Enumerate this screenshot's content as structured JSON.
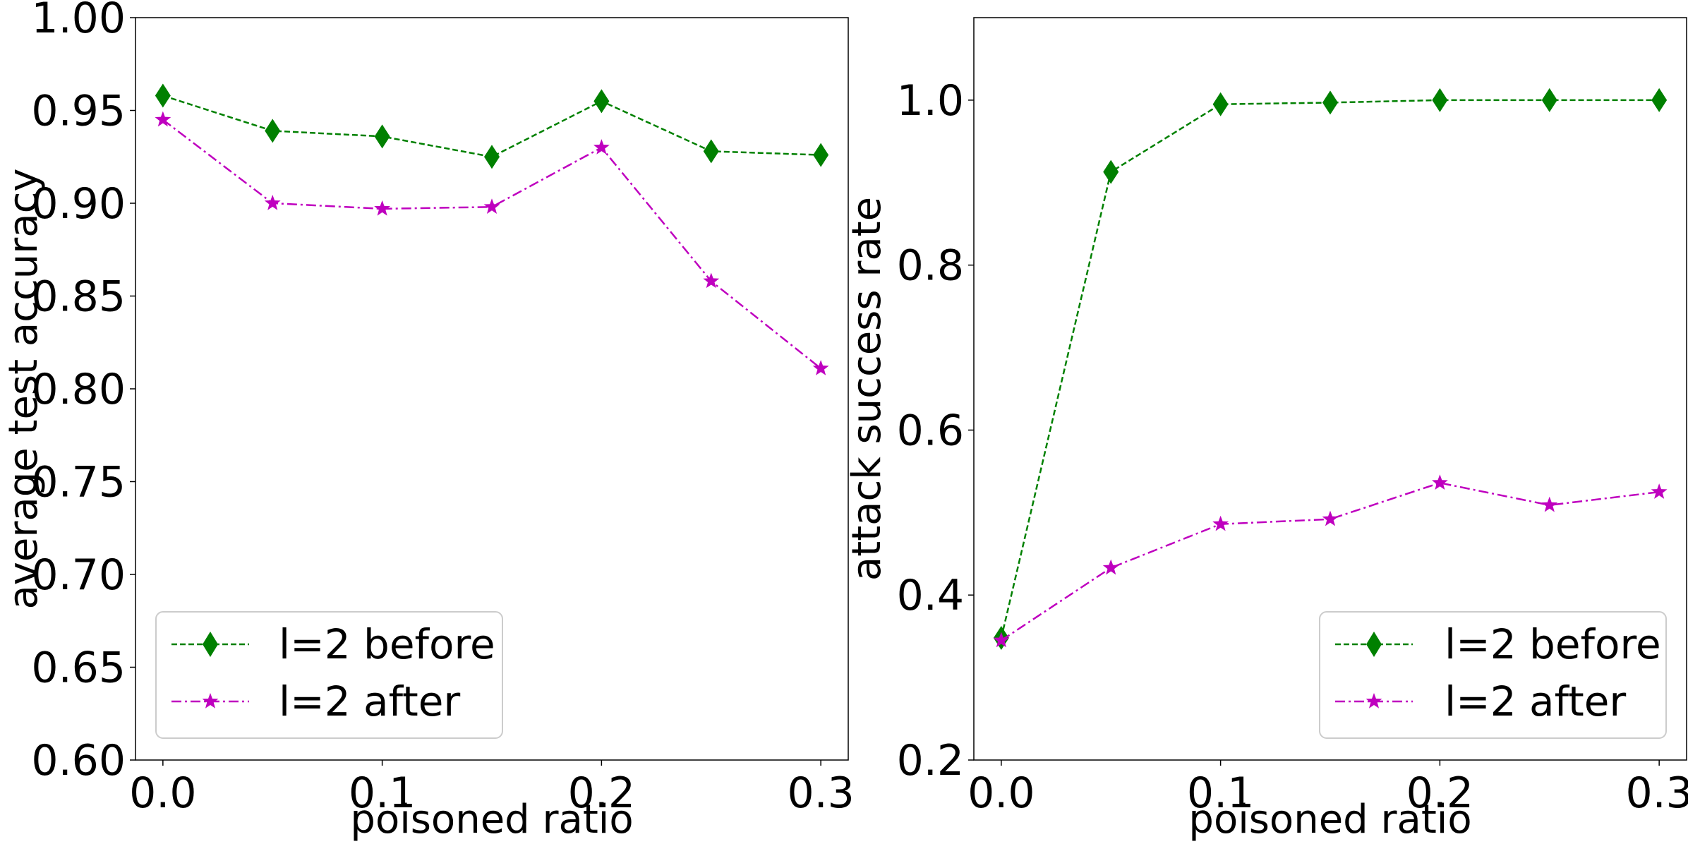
{
  "chart_data": [
    {
      "type": "line",
      "xlabel": "poisoned ratio",
      "ylabel": "average test accuracy",
      "xlim": [
        -0.0125,
        0.3125
      ],
      "ylim": [
        0.6,
        1.0
      ],
      "xticks": [
        0.0,
        0.1,
        0.2,
        0.3
      ],
      "xtick_labels": [
        "0.0",
        "0.1",
        "0.2",
        "0.3"
      ],
      "yticks": [
        0.6,
        0.65,
        0.7,
        0.75,
        0.8,
        0.85,
        0.9,
        0.95,
        1.0
      ],
      "ytick_labels": [
        "0.60",
        "0.65",
        "0.70",
        "0.75",
        "0.80",
        "0.85",
        "0.90",
        "0.95",
        "1.00"
      ],
      "x": [
        0.0,
        0.05,
        0.1,
        0.15,
        0.2,
        0.25,
        0.3
      ],
      "legend_position": "lower-left",
      "series": [
        {
          "name": "l=2 before",
          "color": "#008000",
          "marker": "diamond",
          "line": "dashed",
          "values": [
            0.958,
            0.939,
            0.936,
            0.925,
            0.955,
            0.928,
            0.926
          ]
        },
        {
          "name": "l=2 after",
          "color": "#bf00bf",
          "marker": "star",
          "line": "dashdot",
          "values": [
            0.945,
            0.9,
            0.897,
            0.898,
            0.93,
            0.858,
            0.811
          ]
        }
      ]
    },
    {
      "type": "line",
      "xlabel": "poisoned ratio",
      "ylabel": "attack success rate",
      "xlim": [
        -0.0125,
        0.3125
      ],
      "ylim": [
        0.2,
        1.1
      ],
      "xticks": [
        0.0,
        0.1,
        0.2,
        0.3
      ],
      "xtick_labels": [
        "0.0",
        "0.1",
        "0.2",
        "0.3"
      ],
      "yticks": [
        0.2,
        0.4,
        0.6,
        0.8,
        1.0
      ],
      "ytick_labels": [
        "0.2",
        "0.4",
        "0.6",
        "0.8",
        "1.0"
      ],
      "x": [
        0.0,
        0.05,
        0.1,
        0.15,
        0.2,
        0.25,
        0.3
      ],
      "legend_position": "lower-right",
      "series": [
        {
          "name": "l=2 before",
          "color": "#008000",
          "marker": "diamond",
          "line": "dashed",
          "values": [
            0.348,
            0.913,
            0.995,
            0.997,
            1.0,
            1.0,
            1.0
          ]
        },
        {
          "name": "l=2 after",
          "color": "#bf00bf",
          "marker": "star",
          "line": "dashdot",
          "values": [
            0.345,
            0.433,
            0.486,
            0.492,
            0.536,
            0.509,
            0.525
          ]
        }
      ]
    }
  ]
}
